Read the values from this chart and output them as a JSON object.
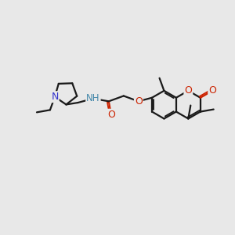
{
  "background_color": "#e8e8e8",
  "bond_color": "#1a1a1a",
  "bond_width": 1.6,
  "figsize": [
    3.0,
    3.0
  ],
  "dpi": 100,
  "colors": {
    "N": "#3333cc",
    "O": "#cc2200",
    "C": "#1a1a1a",
    "H": "#4488aa"
  },
  "xlim": [
    0,
    10
  ],
  "ylim": [
    0,
    10
  ]
}
